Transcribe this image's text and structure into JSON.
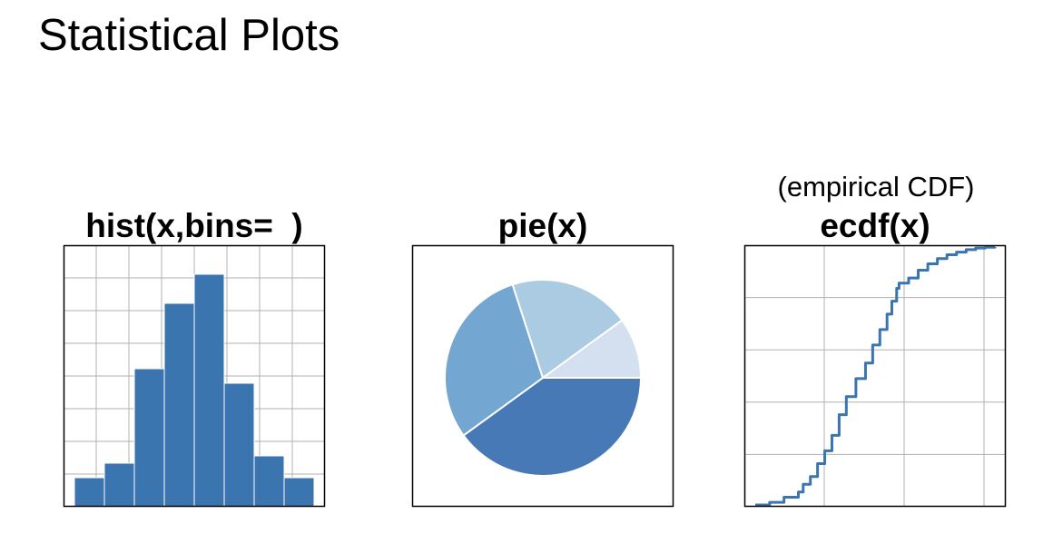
{
  "page": {
    "title": "Statistical Plots"
  },
  "colors": {
    "bar": "#3a75b0",
    "grid": "#b0b0b0",
    "frame": "#000000",
    "line": "#3a75b0",
    "pie": [
      "#4779b6",
      "#73a6d0",
      "#aacbe2",
      "#d4e0ef"
    ]
  },
  "chart_data": [
    {
      "type": "bar",
      "title": "hist(x,bins=  )",
      "values": [
        4,
        6,
        19,
        28,
        32,
        17,
        7,
        4
      ],
      "ylim": [
        0,
        36
      ],
      "grid": true
    },
    {
      "type": "pie",
      "title": "pie(x)",
      "values": [
        40,
        30,
        20,
        10
      ]
    },
    {
      "type": "line",
      "title": "ecdf(x)",
      "subtitle": "(empirical CDF)",
      "x": [
        0.0,
        0.3,
        0.6,
        0.9,
        1.0,
        1.15,
        1.3,
        1.45,
        1.6,
        1.75,
        1.9,
        2.1,
        2.3,
        2.45,
        2.6,
        2.75,
        2.85,
        2.95,
        3.0,
        3.2,
        3.4,
        3.6,
        3.8,
        4.0,
        4.2,
        4.4,
        4.6,
        4.8,
        5.0
      ],
      "y": [
        0.0,
        0.01,
        0.03,
        0.05,
        0.08,
        0.11,
        0.16,
        0.21,
        0.27,
        0.35,
        0.42,
        0.49,
        0.55,
        0.62,
        0.68,
        0.74,
        0.79,
        0.84,
        0.86,
        0.88,
        0.91,
        0.935,
        0.955,
        0.97,
        0.98,
        0.99,
        0.996,
        0.999,
        1.0
      ],
      "xlim": [
        0,
        5
      ],
      "ylim": [
        0,
        1
      ],
      "grid": true
    }
  ]
}
